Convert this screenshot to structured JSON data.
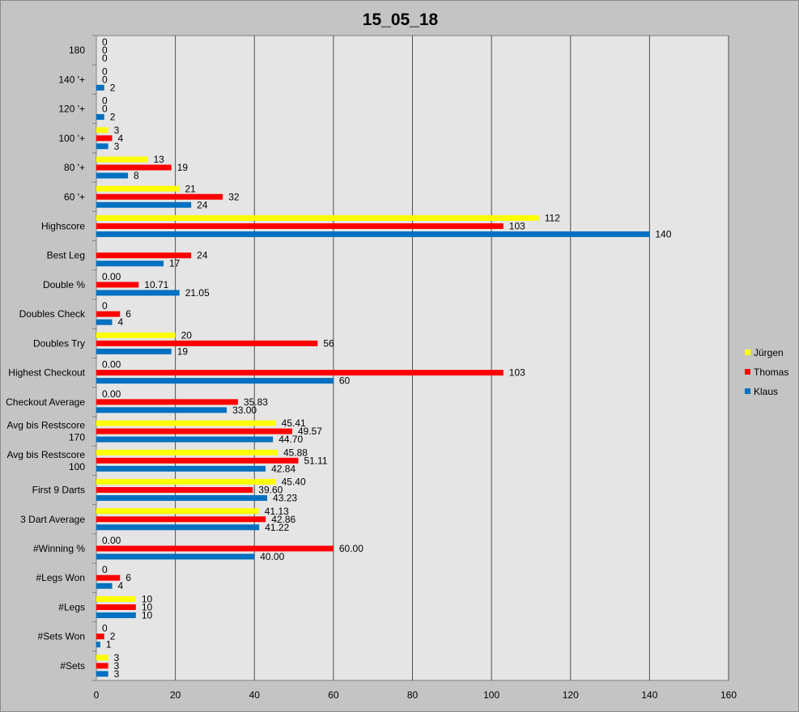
{
  "colors": {
    "Jürgen": "#ffff00",
    "Thomas": "#ff0000",
    "Klaus": "#0070c0"
  },
  "chart_data": {
    "type": "bar",
    "orientation": "horizontal",
    "title": "15_05_18",
    "xlim": [
      0,
      160
    ],
    "xticks": [
      "0",
      "20",
      "40",
      "60",
      "80",
      "100",
      "120",
      "140",
      "160"
    ],
    "xtick_values": [
      0,
      20,
      40,
      60,
      80,
      100,
      120,
      140,
      160
    ],
    "grid": true,
    "legend_position": "right",
    "categories": [
      "180",
      "140 '+",
      "120 '+",
      "100 '+",
      "80 '+",
      "60 '+",
      "Highscore",
      "Best Leg",
      "Double %",
      "Doubles Check",
      "Doubles Try",
      "Highest Checkout",
      "Checkout Average",
      "Avg bis Restscore\n170",
      "Avg bis Restscore\n100",
      "First 9 Darts",
      "3 Dart Average",
      "#Winning %",
      "#Legs Won",
      "#Legs",
      "#Sets Won",
      "#Sets"
    ],
    "series": [
      {
        "name": "Jürgen",
        "values": [
          0,
          0,
          0,
          3,
          13,
          21,
          112,
          null,
          0,
          0,
          20,
          0,
          0,
          45.41,
          45.88,
          45.4,
          41.13,
          0,
          0,
          10,
          0,
          3
        ],
        "labels": [
          "0",
          "0",
          "0",
          "3",
          "13",
          "21",
          "112",
          "",
          "0.00",
          "0",
          "20",
          "0.00",
          "0.00",
          "45.41",
          "45.88",
          "45.40",
          "41.13",
          "0.00",
          "0",
          "10",
          "0",
          "3"
        ]
      },
      {
        "name": "Thomas",
        "values": [
          0,
          0,
          0,
          4,
          19,
          32,
          103,
          24,
          10.71,
          6,
          56,
          103,
          35.83,
          49.57,
          51.11,
          39.6,
          42.86,
          60,
          6,
          10,
          2,
          3
        ],
        "labels": [
          "0",
          "0",
          "0",
          "4",
          "19",
          "32",
          "103",
          "24",
          "10.71",
          "6",
          "56",
          "103",
          "35.83",
          "49.57",
          "51.11",
          "39.60",
          "42.86",
          "60.00",
          "6",
          "10",
          "2",
          "3"
        ]
      },
      {
        "name": "Klaus",
        "values": [
          0,
          2,
          2,
          3,
          8,
          24,
          140,
          17,
          21.05,
          4,
          19,
          60,
          33.0,
          44.7,
          42.84,
          43.23,
          41.22,
          40,
          4,
          10,
          1,
          3
        ],
        "labels": [
          "0",
          "2",
          "2",
          "3",
          "8",
          "24",
          "140",
          "17",
          "21.05",
          "4",
          "19",
          "60",
          "33.00",
          "44.70",
          "42.84",
          "43.23",
          "41.22",
          "40.00",
          "4",
          "10",
          "1",
          "3"
        ]
      }
    ]
  }
}
